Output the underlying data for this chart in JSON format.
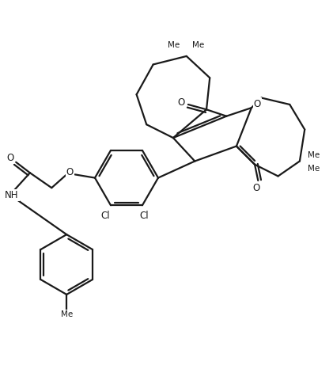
{
  "background_color": "#ffffff",
  "line_color": "#1a1a1a",
  "line_width": 1.6,
  "font_size": 8.5,
  "figsize": [
    4.21,
    4.66
  ],
  "dpi": 100,
  "xlim": [
    0,
    10
  ],
  "ylim": [
    0,
    11
  ],
  "labels": {
    "O_ether": "O",
    "O_amide": "O",
    "O_pyran": "O",
    "O_keto1": "O",
    "O_keto2": "O",
    "NH": "NH",
    "Cl": "Cl"
  }
}
